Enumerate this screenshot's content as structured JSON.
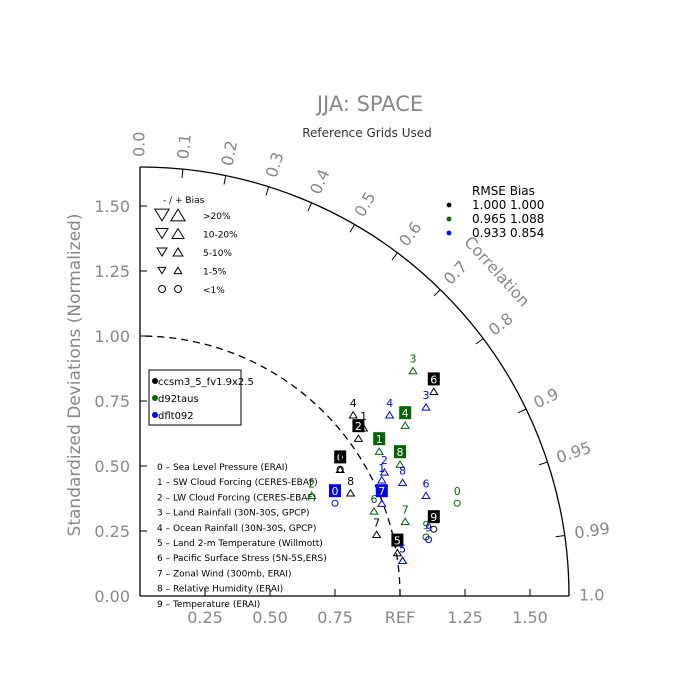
{
  "chart_data": {
    "type": "scatter",
    "title": "JJA: SPACE",
    "subtitle": "Reference Grids Used",
    "ylabel": "Standardized Deviations (Normalized)",
    "corr_label": "Correlation",
    "ref_label": "REF",
    "radius_max": 1.65,
    "x_ticks": [
      "0.25",
      "0.50",
      "0.75",
      "REF",
      "1.25",
      "1.50"
    ],
    "y_ticks": [
      "0.00",
      "0.25",
      "0.50",
      "0.75",
      "1.00",
      "1.25",
      "1.50"
    ],
    "corr_ticks": [
      {
        "label": "0.0",
        "value": 0.0
      },
      {
        "label": "0.1",
        "value": 0.1
      },
      {
        "label": "0.2",
        "value": 0.2
      },
      {
        "label": "0.3",
        "value": 0.3
      },
      {
        "label": "0.4",
        "value": 0.4
      },
      {
        "label": "0.5",
        "value": 0.5
      },
      {
        "label": "0.6",
        "value": 0.6
      },
      {
        "label": "0.7",
        "value": 0.7
      },
      {
        "label": "0.8",
        "value": 0.8
      },
      {
        "label": "0.9",
        "value": 0.9
      },
      {
        "label": "0.95",
        "value": 0.95
      },
      {
        "label": "0.99",
        "value": 0.99
      },
      {
        "label": "1.0",
        "value": 1.0
      }
    ],
    "bias_legend": {
      "header": "-  /  +      Bias",
      "rows": [
        ">20%",
        "10-20%",
        "5-10%",
        "1-5%",
        "<1%"
      ]
    },
    "rmse_legend": {
      "header": "RMSE  Bias",
      "rows": [
        {
          "color": "#000000",
          "rmse": "1.000",
          "bias": "1.000"
        },
        {
          "color": "#006400",
          "rmse": "0.965",
          "bias": "1.088"
        },
        {
          "color": "#0000ff",
          "rmse": "0.933",
          "bias": "0.854"
        }
      ]
    },
    "cases": [
      {
        "name": "ccsm3_5_fv1.9x2.5",
        "color": "#000000"
      },
      {
        "name": "d92taus",
        "color": "#006400"
      },
      {
        "name": "dflt092",
        "color": "#0000ff"
      }
    ],
    "variables": [
      "0 – Sea Level Pressure (ERAI)",
      "1 – SW Cloud Forcing (CERES-EBAF)",
      "2 – LW Cloud Forcing (CERES-EBAF)",
      "3 – Land Rainfall (30N-30S, GPCP)",
      "4 – Ocean Rainfall (30N-30S, GPCP)",
      "5 – Land 2-m Temperature (Willmott)",
      "6 – Pacific Surface Stress (5N-5S,ERS)",
      "7 – Zonal Wind (300mb, ERAI)",
      "8 – Relative Humidity (ERAI)",
      "9 – Temperature (ERAI)"
    ],
    "series": [
      {
        "name": "ccsm3_5_fv1.9x2.5",
        "color": "#000000",
        "points": [
          {
            "label": "0",
            "x": 0.77,
            "y": 0.51
          },
          {
            "label": "1",
            "x": 0.86,
            "y": 0.67
          },
          {
            "label": "2",
            "x": 0.84,
            "y": 0.63
          },
          {
            "label": "3",
            "x": 0.77,
            "y": 0.51
          },
          {
            "label": "4",
            "x": 0.82,
            "y": 0.72
          },
          {
            "label": "5",
            "x": 0.99,
            "y": 0.19
          },
          {
            "label": "6",
            "x": 1.13,
            "y": 0.81
          },
          {
            "label": "7",
            "x": 0.91,
            "y": 0.26
          },
          {
            "label": "8",
            "x": 0.81,
            "y": 0.42
          },
          {
            "label": "9",
            "x": 1.13,
            "y": 0.28
          }
        ]
      },
      {
        "name": "d92taus",
        "color": "#006400",
        "points": [
          {
            "label": "0",
            "x": 1.22,
            "y": 0.38
          },
          {
            "label": "1",
            "x": 0.92,
            "y": 0.58
          },
          {
            "label": "2",
            "x": 0.66,
            "y": 0.41
          },
          {
            "label": "3",
            "x": 1.05,
            "y": 0.89
          },
          {
            "label": "4",
            "x": 1.02,
            "y": 0.68
          },
          {
            "label": "5",
            "x": 1.01,
            "y": 0.16
          },
          {
            "label": "6",
            "x": 0.9,
            "y": 0.35
          },
          {
            "label": "7",
            "x": 1.02,
            "y": 0.31
          },
          {
            "label": "8",
            "x": 1.0,
            "y": 0.53
          },
          {
            "label": "9",
            "x": 1.1,
            "y": 0.25
          }
        ]
      },
      {
        "name": "dflt092",
        "color": "#0000ff",
        "points": [
          {
            "label": "0",
            "x": 0.75,
            "y": 0.38
          },
          {
            "label": "1",
            "x": 0.93,
            "y": 0.47
          },
          {
            "label": "2",
            "x": 0.94,
            "y": 0.5
          },
          {
            "label": "3",
            "x": 1.1,
            "y": 0.75
          },
          {
            "label": "4",
            "x": 0.96,
            "y": 0.72
          },
          {
            "label": "5",
            "x": 1.01,
            "y": 0.16
          },
          {
            "label": "6",
            "x": 1.1,
            "y": 0.41
          },
          {
            "label": "7",
            "x": 0.93,
            "y": 0.38
          },
          {
            "label": "8",
            "x": 1.01,
            "y": 0.46
          },
          {
            "label": "9",
            "x": 1.11,
            "y": 0.24
          }
        ]
      }
    ]
  }
}
